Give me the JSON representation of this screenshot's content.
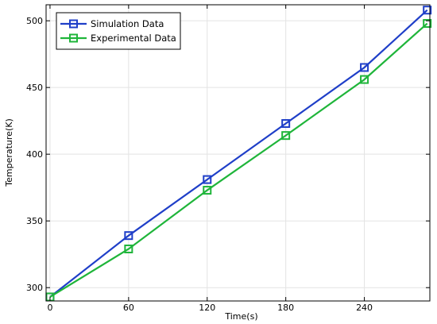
{
  "chart_data": {
    "type": "line",
    "title": "",
    "xlabel": "Time(s)",
    "ylabel": "Temperature(K)",
    "xlim": [
      -3,
      290
    ],
    "ylim": [
      290,
      512
    ],
    "x_ticks": [
      0,
      60,
      120,
      180,
      240
    ],
    "y_ticks": [
      300,
      350,
      400,
      450,
      500
    ],
    "grid": true,
    "legend_position": "top-left",
    "series": [
      {
        "name": "Simulation Data",
        "color": "#1f3fc8",
        "marker": "square",
        "x": [
          0,
          60,
          120,
          180,
          240,
          288
        ],
        "y": [
          293,
          339,
          381,
          423,
          465,
          508
        ]
      },
      {
        "name": "Experimental Data",
        "color": "#1fb53a",
        "marker": "square",
        "x": [
          0,
          60,
          120,
          180,
          240,
          288
        ],
        "y": [
          293,
          329,
          373,
          414,
          456,
          498
        ]
      }
    ]
  }
}
